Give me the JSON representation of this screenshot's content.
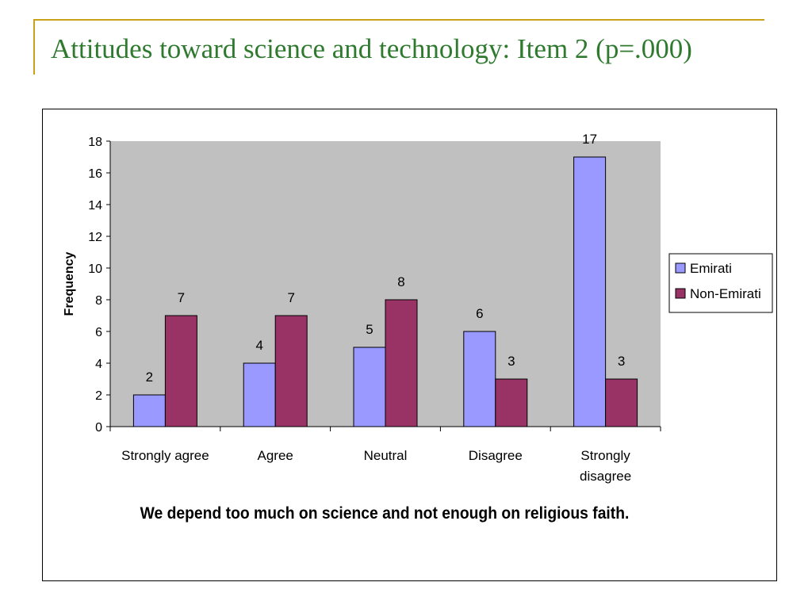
{
  "slide": {
    "title": "Attitudes toward science and technology: Item 2 (p=.000)",
    "accent_color": "#c9a21b",
    "title_color": "#2f7a2f"
  },
  "chart_data": {
    "type": "bar",
    "title": "",
    "xlabel": "We depend too much on science and not enough on religious faith.",
    "ylabel": "Frequency",
    "ylim": [
      0,
      18
    ],
    "yticks": [
      0,
      2,
      4,
      6,
      8,
      10,
      12,
      14,
      16,
      18
    ],
    "grid": false,
    "legend_position": "right",
    "plot_background": "#c0c0c0",
    "categories": [
      [
        "Strongly agree"
      ],
      [
        "Agree"
      ],
      [
        "Neutral"
      ],
      [
        "Disagree"
      ],
      [
        "Strongly",
        "disagree"
      ]
    ],
    "series": [
      {
        "name": "Emirati",
        "color": "#9999ff",
        "values": [
          2,
          4,
          5,
          6,
          17
        ]
      },
      {
        "name": "Non-Emirati",
        "color": "#993366",
        "values": [
          7,
          7,
          8,
          3,
          3
        ]
      }
    ]
  }
}
